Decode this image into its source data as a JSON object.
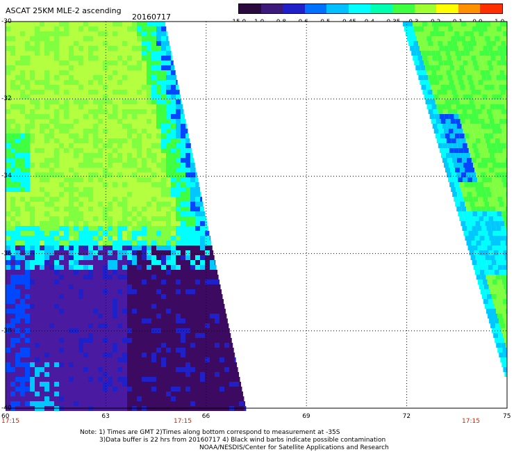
{
  "header": {
    "title": "ASCAT 25KM MLE-2 ascending",
    "date": "20160717"
  },
  "colorbar": {
    "labels": [
      "-15.0",
      "-1.0",
      "-0.8",
      "-0.6",
      "-0.5",
      "-0.45",
      "-0.4",
      "-0.35",
      "-0.3",
      "-0.2",
      "-0.1",
      "0.0",
      "1.0"
    ],
    "colors": [
      "#2a0a3c",
      "#3b1a7a",
      "#2020c8",
      "#0070ff",
      "#00c0ff",
      "#00ffff",
      "#00ffb0",
      "#40ff40",
      "#a0ff30",
      "#ffff00",
      "#ff9000",
      "#ff3000"
    ]
  },
  "axes": {
    "lat_labels": [
      "-30",
      "-32",
      "-34",
      "-36",
      "-38",
      "-40"
    ],
    "lon_labels": [
      "60",
      "63",
      "66",
      "69",
      "72",
      "75"
    ],
    "time_labels": [
      "17:15",
      "17:15",
      "17:15"
    ]
  },
  "notes": [
    "Note: 1) Times are GMT 2)Times along bottom correspond to measurement at -35S",
    "3)Data buffer is 22 hrs from 20160717 4) Black wind barbs indicate possible contamination",
    "NOAA/NESDIS/Center for Satellite Applications and Research"
  ]
}
